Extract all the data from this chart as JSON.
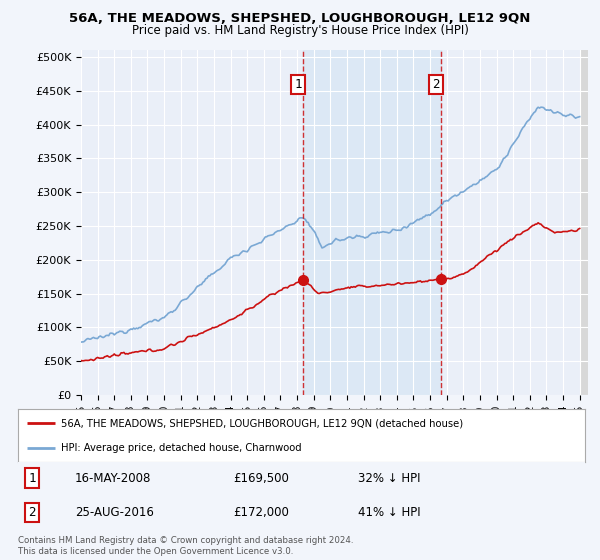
{
  "title": "56A, THE MEADOWS, SHEPSHED, LOUGHBOROUGH, LE12 9QN",
  "subtitle": "Price paid vs. HM Land Registry's House Price Index (HPI)",
  "ylabel_ticks": [
    "£0",
    "£50K",
    "£100K",
    "£150K",
    "£200K",
    "£250K",
    "£300K",
    "£350K",
    "£400K",
    "£450K",
    "£500K"
  ],
  "ytick_values": [
    0,
    50000,
    100000,
    150000,
    200000,
    250000,
    300000,
    350000,
    400000,
    450000,
    500000
  ],
  "xlim_start": 1995.0,
  "xlim_end": 2025.5,
  "ylim_max": 510000,
  "hpi_color": "#7aa8d4",
  "price_color": "#cc1111",
  "transaction1_date": 2008.37,
  "transaction1_price": 169500,
  "transaction2_date": 2016.65,
  "transaction2_price": 172000,
  "vline_color": "#cc1111",
  "shade_color": "#dce8f5",
  "legend_label1": "56A, THE MEADOWS, SHEPSHED, LOUGHBOROUGH, LE12 9QN (detached house)",
  "legend_label2": "HPI: Average price, detached house, Charnwood",
  "note1_num": "1",
  "note1_date": "16-MAY-2008",
  "note1_price": "£169,500",
  "note1_hpi": "32% ↓ HPI",
  "note2_num": "2",
  "note2_date": "25-AUG-2016",
  "note2_price": "£172,000",
  "note2_hpi": "41% ↓ HPI",
  "copyright": "Contains HM Land Registry data © Crown copyright and database right 2024.\nThis data is licensed under the Open Government Licence v3.0.",
  "background_color": "#f2f5fb",
  "plot_bg_color": "#eaeff8"
}
